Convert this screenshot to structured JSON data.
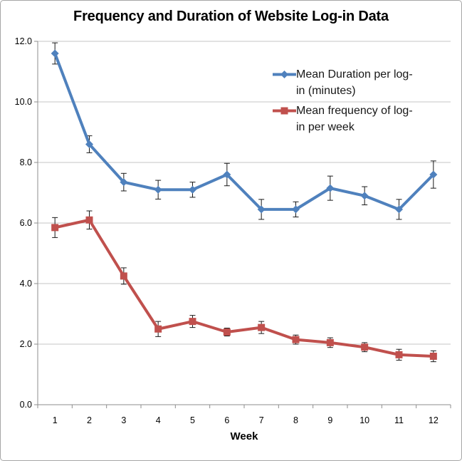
{
  "chart_data": {
    "type": "line",
    "title": "Frequency and Duration of Website Log-in Data",
    "xlabel": "Week",
    "ylabel": "",
    "categories": [
      "1",
      "2",
      "3",
      "4",
      "5",
      "6",
      "7",
      "8",
      "9",
      "10",
      "11",
      "12"
    ],
    "ylim": [
      0,
      12
    ],
    "ytick_step": 2,
    "ytick_labels": [
      "0.0",
      "2.0",
      "4.0",
      "6.0",
      "8.0",
      "10.0",
      "12.0"
    ],
    "grid": "horizontal",
    "legend_position": "inside-top-right",
    "error_bars": true,
    "series": [
      {
        "name": "Mean Duration per log-in (minutes)",
        "marker": "diamond",
        "color": "#4F81BD",
        "values": [
          11.6,
          8.6,
          7.35,
          7.1,
          7.1,
          7.6,
          6.45,
          6.45,
          7.15,
          6.9,
          6.45,
          7.6
        ],
        "errors": [
          0.35,
          0.28,
          0.29,
          0.31,
          0.25,
          0.37,
          0.33,
          0.25,
          0.4,
          0.3,
          0.33,
          0.45
        ]
      },
      {
        "name": "Mean frequency of log-in per week",
        "marker": "square",
        "color": "#C0504D",
        "values": [
          5.85,
          6.1,
          4.25,
          2.5,
          2.75,
          2.4,
          2.55,
          2.15,
          2.05,
          1.9,
          1.65,
          1.6
        ],
        "errors": [
          0.33,
          0.3,
          0.27,
          0.25,
          0.2,
          0.13,
          0.2,
          0.15,
          0.16,
          0.15,
          0.18,
          0.18
        ]
      }
    ],
    "style": {
      "gridline_color": "#c6c6c6",
      "axis_color": "#8e8e8e",
      "error_bar_color": "#1a1a1a",
      "tick_label_color": "#000000"
    }
  },
  "legend": {
    "entries": [
      {
        "lines": [
          "Mean Duration per log-",
          "in (minutes)"
        ]
      },
      {
        "lines": [
          "Mean frequency of log-",
          "in per week"
        ]
      }
    ]
  }
}
